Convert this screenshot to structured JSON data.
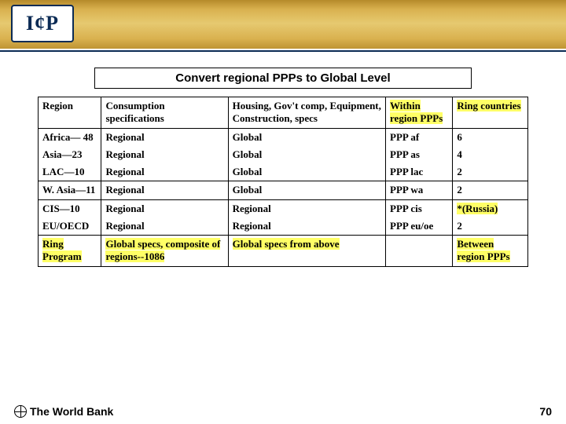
{
  "banner": {
    "logo_text": "I¢P",
    "gradient_colors": [
      "#b68a2a",
      "#d9b14f",
      "#e6c970"
    ],
    "accent_line_color": "#0b2b55"
  },
  "title": "Convert regional PPPs to Global Level",
  "table": {
    "columns": [
      "Region",
      "Consumption specifications",
      "Housing, Gov't comp, Equipment, Construction, specs",
      "Within region PPPs",
      "Ring countries"
    ],
    "highlight_header_cols": [
      3,
      4
    ],
    "rows": [
      {
        "cells": [
          "Africa— 48",
          "Regional",
          "Global",
          "PPP af",
          "6"
        ],
        "hl": []
      },
      {
        "cells": [
          "Asia—23",
          "Regional",
          "Global",
          "PPP as",
          "4"
        ],
        "hl": []
      },
      {
        "cells": [
          "LAC—10",
          "Regional",
          "Global",
          "PPP lac",
          "2"
        ],
        "hl": []
      },
      {
        "cells": [
          "W. Asia—11",
          "Regional",
          "Global",
          "PPP wa",
          "2"
        ],
        "hl": []
      },
      {
        "cells": [
          "CIS—10",
          "Regional",
          "Regional",
          "PPP cis",
          "*(Russia)"
        ],
        "hl": [
          4
        ]
      },
      {
        "cells": [
          "EU/OECD",
          "Regional",
          "Regional",
          "PPP eu/oe",
          "2"
        ],
        "hl": []
      },
      {
        "cells": [
          "Ring Program",
          "Global specs, composite of regions--1086",
          "Global specs from above",
          "",
          "Between region PPPs"
        ],
        "hl": [
          0,
          1,
          2,
          4
        ]
      }
    ],
    "font_family": "Georgia, Times New Roman, serif",
    "font_size_pt": 10,
    "highlight_color": "#ffff66",
    "border_color": "#000000"
  },
  "footer": {
    "org": "The World Bank",
    "page": "70"
  }
}
